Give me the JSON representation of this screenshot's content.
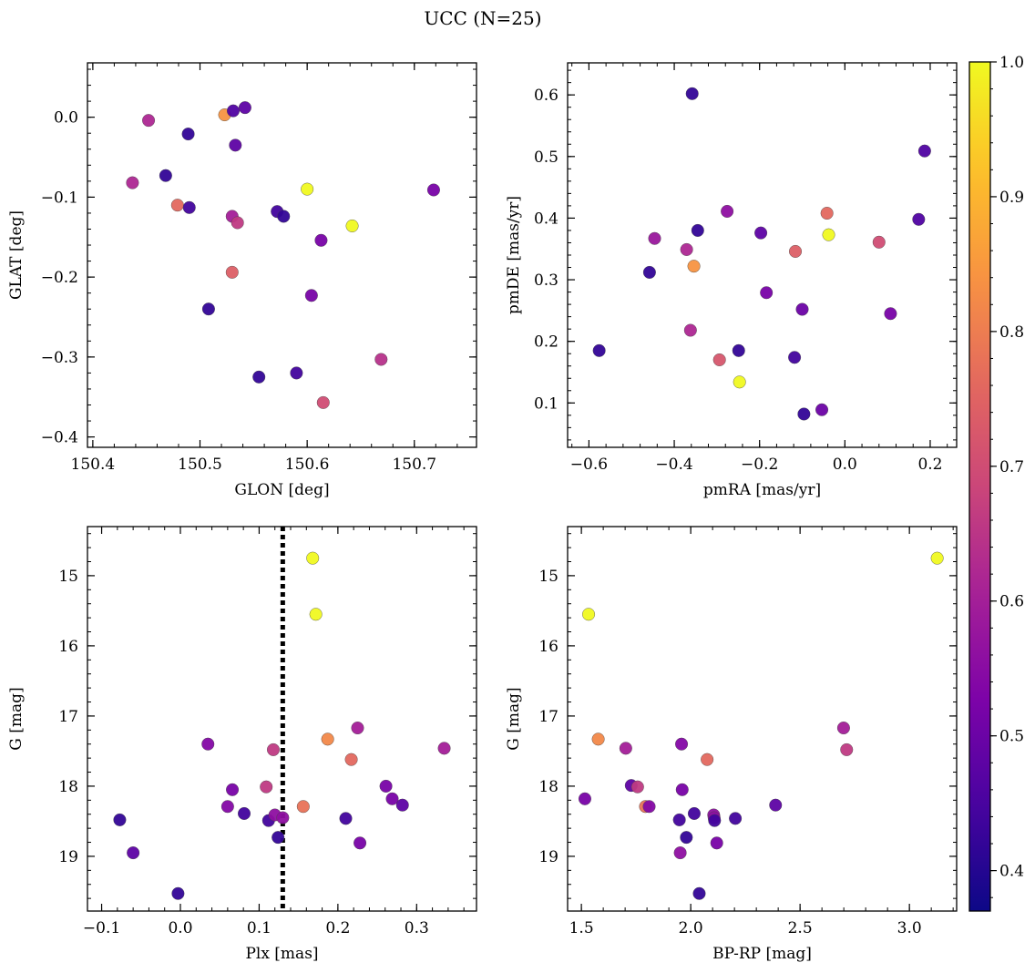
{
  "figure": {
    "title": "UCC (N=25)"
  },
  "colorbar": {
    "min": 0.37,
    "max": 1.0,
    "ticks": [
      0.4,
      0.5,
      0.6,
      0.7,
      0.8,
      0.9,
      1.0
    ],
    "tick_labels": [
      "0.4",
      "0.5",
      "0.6",
      "0.7",
      "0.8",
      "0.9",
      "1.0"
    ],
    "colormap": "plasma"
  },
  "chart_data": [
    {
      "type": "scatter",
      "xlabel": "GLON [deg]",
      "ylabel": "GLAT [deg]",
      "xlim": [
        150.395,
        150.758
      ],
      "ylim": [
        -0.413,
        0.068
      ],
      "xticks": [
        150.4,
        150.5,
        150.6,
        150.7
      ],
      "xtick_labels": [
        "150.4",
        "150.5",
        "150.6",
        "150.7"
      ],
      "yticks": [
        0.0,
        -0.1,
        -0.2,
        -0.3,
        -0.4
      ],
      "ytick_labels": [
        "0.0",
        "−0.1",
        "−0.2",
        "−0.3",
        "−0.4"
      ],
      "x": [
        150.452,
        150.489,
        150.468,
        150.437,
        150.479,
        150.49,
        150.508,
        150.523,
        150.531,
        150.542,
        150.533,
        150.53,
        150.535,
        150.53,
        150.572,
        150.578,
        150.555,
        150.59,
        150.6,
        150.604,
        150.613,
        150.615,
        150.642,
        150.669,
        150.718
      ],
      "y": [
        -0.004,
        -0.021,
        -0.073,
        -0.082,
        -0.11,
        -0.113,
        -0.24,
        0.003,
        0.008,
        0.012,
        -0.035,
        -0.124,
        -0.132,
        -0.194,
        -0.118,
        -0.124,
        -0.325,
        -0.32,
        -0.09,
        -0.223,
        -0.154,
        -0.357,
        -0.136,
        -0.303,
        -0.091
      ],
      "c": [
        0.62,
        0.42,
        0.42,
        0.62,
        0.76,
        0.44,
        0.42,
        0.84,
        0.46,
        0.48,
        0.48,
        0.6,
        0.66,
        0.74,
        0.44,
        0.42,
        0.42,
        0.44,
        1.0,
        0.52,
        0.52,
        0.7,
        1.0,
        0.64,
        0.52
      ]
    },
    {
      "type": "scatter",
      "xlabel": "pmRA [mas/yr]",
      "ylabel": "pmDE [mas/yr]",
      "xlim": [
        -0.65,
        0.262
      ],
      "ylim": [
        0.028,
        0.652
      ],
      "xticks": [
        -0.6,
        -0.4,
        -0.2,
        0.0,
        0.2
      ],
      "xtick_labels": [
        "−0.6",
        "−0.4",
        "−0.2",
        "0.0",
        "0.2"
      ],
      "yticks": [
        0.1,
        0.2,
        0.3,
        0.4,
        0.5,
        0.6
      ],
      "ytick_labels": [
        "0.1",
        "0.2",
        "0.3",
        "0.4",
        "0.5",
        "0.6"
      ],
      "x": [
        -0.576,
        -0.458,
        -0.446,
        -0.371,
        -0.362,
        -0.358,
        -0.354,
        -0.345,
        -0.294,
        -0.276,
        -0.249,
        -0.247,
        -0.197,
        -0.184,
        -0.118,
        -0.116,
        -0.1,
        -0.096,
        -0.054,
        -0.042,
        -0.038,
        0.08,
        0.107,
        0.173,
        0.187
      ],
      "y": [
        0.185,
        0.312,
        0.367,
        0.349,
        0.218,
        0.602,
        0.322,
        0.38,
        0.17,
        0.411,
        0.185,
        0.134,
        0.376,
        0.279,
        0.174,
        0.346,
        0.252,
        0.082,
        0.089,
        0.408,
        0.373,
        0.361,
        0.245,
        0.398,
        0.509
      ],
      "c": [
        0.42,
        0.42,
        0.58,
        0.62,
        0.62,
        0.42,
        0.84,
        0.42,
        0.72,
        0.56,
        0.42,
        1.0,
        0.48,
        0.52,
        0.44,
        0.74,
        0.5,
        0.42,
        0.5,
        0.76,
        1.0,
        0.7,
        0.52,
        0.46,
        0.46
      ]
    },
    {
      "type": "scatter",
      "xlabel": "Plx [mas]",
      "ylabel": "G [mag]",
      "xlim": [
        -0.118,
        0.376
      ],
      "ylim": [
        19.78,
        14.3
      ],
      "y_inverted": true,
      "xticks": [
        -0.1,
        0.0,
        0.1,
        0.2,
        0.3
      ],
      "xtick_labels": [
        "−0.1",
        "0.0",
        "0.1",
        "0.2",
        "0.3"
      ],
      "yticks": [
        15,
        16,
        17,
        18,
        19
      ],
      "ytick_labels": [
        "15",
        "16",
        "17",
        "18",
        "19"
      ],
      "vline_x": 0.13,
      "x": [
        -0.077,
        -0.06,
        -0.003,
        0.035,
        0.06,
        0.066,
        0.081,
        0.109,
        0.112,
        0.118,
        0.12,
        0.124,
        0.13,
        0.156,
        0.168,
        0.172,
        0.187,
        0.21,
        0.217,
        0.225,
        0.228,
        0.261,
        0.269,
        0.282,
        0.335
      ],
      "y": [
        18.48,
        18.95,
        19.53,
        17.4,
        18.29,
        18.05,
        18.39,
        18.01,
        18.49,
        17.48,
        18.41,
        18.73,
        18.45,
        18.29,
        14.75,
        15.55,
        17.33,
        18.46,
        17.62,
        17.17,
        18.81,
        18.0,
        18.18,
        18.27,
        17.46
      ],
      "c": [
        0.42,
        0.48,
        0.42,
        0.54,
        0.54,
        0.52,
        0.44,
        0.66,
        0.44,
        0.66,
        0.56,
        0.42,
        0.56,
        0.78,
        1.0,
        1.0,
        0.82,
        0.44,
        0.76,
        0.6,
        0.52,
        0.52,
        0.52,
        0.48,
        0.6
      ]
    },
    {
      "type": "scatter",
      "xlabel": "BP-RP [mag]",
      "ylabel": "G [mag]",
      "xlim": [
        1.437,
        3.216
      ],
      "ylim": [
        19.78,
        14.3
      ],
      "y_inverted": true,
      "xticks": [
        1.5,
        2.0,
        2.5,
        3.0
      ],
      "xtick_labels": [
        "1.5",
        "2.0",
        "2.5",
        "3.0"
      ],
      "yticks": [
        15,
        16,
        17,
        18,
        19
      ],
      "ytick_labels": [
        "15",
        "16",
        "17",
        "18",
        "19"
      ],
      "x": [
        1.516,
        1.533,
        1.577,
        1.703,
        1.728,
        1.757,
        1.793,
        1.81,
        1.948,
        1.952,
        1.958,
        1.961,
        1.98,
        2.016,
        2.039,
        2.075,
        2.105,
        2.107,
        2.109,
        2.119,
        2.204,
        2.388,
        2.699,
        2.713,
        3.127
      ],
      "y": [
        18.18,
        15.55,
        17.33,
        17.46,
        17.99,
        18.01,
        18.29,
        18.29,
        18.48,
        18.95,
        17.4,
        18.05,
        18.73,
        18.39,
        19.53,
        17.62,
        18.41,
        18.45,
        18.49,
        18.81,
        18.46,
        18.27,
        17.17,
        17.48,
        14.75
      ],
      "c": [
        0.52,
        1.0,
        0.82,
        0.6,
        0.48,
        0.66,
        0.78,
        0.54,
        0.44,
        0.56,
        0.54,
        0.52,
        0.42,
        0.44,
        0.42,
        0.76,
        0.56,
        0.56,
        0.44,
        0.52,
        0.44,
        0.48,
        0.6,
        0.66,
        1.0
      ]
    }
  ]
}
